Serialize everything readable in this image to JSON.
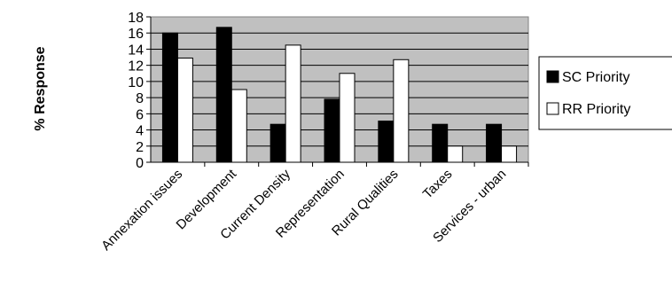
{
  "chart_data": {
    "type": "bar",
    "title": "",
    "xlabel": "",
    "ylabel": "% Response",
    "ylim": [
      0,
      18
    ],
    "yticks": [
      0,
      2,
      4,
      6,
      8,
      10,
      12,
      14,
      16,
      18
    ],
    "grid": true,
    "legend_position": "right",
    "categories": [
      "Annexation issues",
      "Development",
      "Current Density",
      "Representation",
      "Rural Qualities",
      "Taxes",
      "Services - urban"
    ],
    "series": [
      {
        "name": "SC Priority",
        "color": "#000000",
        "values": [
          16,
          16.7,
          4.7,
          7.8,
          5.1,
          4.7,
          4.7
        ]
      },
      {
        "name": "RR Priority",
        "color": "#ffffff",
        "values": [
          12.9,
          9,
          14.5,
          11,
          12.7,
          2,
          2
        ]
      }
    ],
    "plot_background": "#c0c0c0"
  }
}
